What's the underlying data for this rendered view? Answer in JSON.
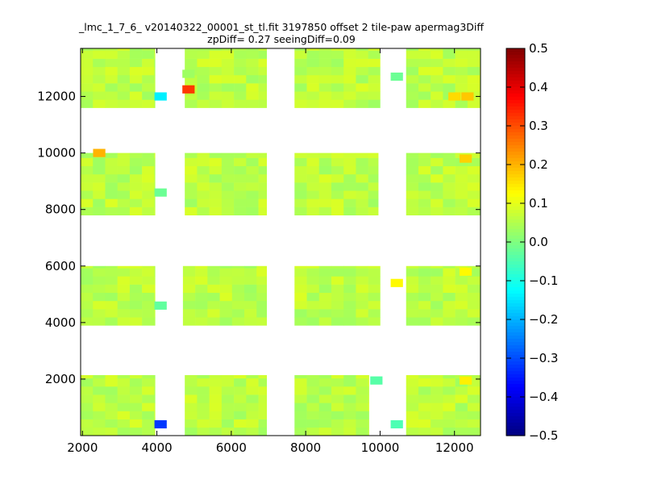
{
  "chart_data": {
    "type": "heatmap",
    "title": "_lmc_1_7_6_ v20140322_00001_st_tl.fit 3197850 offset 2 tile-paw apermag3Diff",
    "subtitle": "zpDiff= 0.27 seeingDiff=0.09",
    "xlabel": "",
    "ylabel": "",
    "xlim": [
      1950,
      12700
    ],
    "ylim": [
      0,
      13700
    ],
    "x_ticks": [
      2000,
      4000,
      6000,
      8000,
      10000,
      12000
    ],
    "y_ticks": [
      2000,
      4000,
      6000,
      8000,
      10000,
      12000
    ],
    "colorbar": {
      "range": [
        -0.5,
        0.5
      ],
      "ticks": [
        "0.5",
        "0.4",
        "0.3",
        "0.2",
        "0.1",
        "0.0",
        "−0.1",
        "−0.2",
        "−0.3",
        "−0.4",
        "−0.5"
      ],
      "colormap": "jet"
    },
    "base_value": 0.06,
    "blocks": [
      {
        "x": [
          1950,
          3950
        ],
        "y": [
          1,
          2140
        ]
      },
      {
        "x": [
          4750,
          6950
        ],
        "y": [
          1,
          2140
        ]
      },
      {
        "x": [
          7700,
          9700
        ],
        "y": [
          1,
          2140
        ]
      },
      {
        "x": [
          10700,
          12700
        ],
        "y": [
          1,
          2140
        ]
      },
      {
        "x": [
          1950,
          3950
        ],
        "y": [
          3900,
          6000
        ]
      },
      {
        "x": [
          4700,
          6950
        ],
        "y": [
          3900,
          6000
        ]
      },
      {
        "x": [
          7700,
          10000
        ],
        "y": [
          3900,
          6000
        ]
      },
      {
        "x": [
          10700,
          12700
        ],
        "y": [
          3900,
          6000
        ]
      },
      {
        "x": [
          1950,
          3950
        ],
        "y": [
          7800,
          10000
        ]
      },
      {
        "x": [
          4750,
          6950
        ],
        "y": [
          7800,
          10000
        ]
      },
      {
        "x": [
          7700,
          9950
        ],
        "y": [
          7800,
          10000
        ]
      },
      {
        "x": [
          10700,
          12700
        ],
        "y": [
          7800,
          10000
        ]
      },
      {
        "x": [
          1950,
          3950
        ],
        "y": [
          11600,
          13700
        ]
      },
      {
        "x": [
          4750,
          6950
        ],
        "y": [
          11600,
          13700
        ]
      },
      {
        "x": [
          7700,
          10000
        ],
        "y": [
          11600,
          13700
        ]
      },
      {
        "x": [
          10700,
          12700
        ],
        "y": [
          11600,
          13700
        ]
      }
    ],
    "cells": [
      {
        "x": 4100,
        "y": 400,
        "value": -0.32
      },
      {
        "x": 4100,
        "y": 4600,
        "value": -0.03
      },
      {
        "x": 4100,
        "y": 8600,
        "value": -0.02
      },
      {
        "x": 4100,
        "y": 12000,
        "value": -0.14
      },
      {
        "x": 4850,
        "y": 12250,
        "value": 0.32
      },
      {
        "x": 4850,
        "y": 12800,
        "value": 0.03
      },
      {
        "x": 2450,
        "y": 10000,
        "value": 0.2
      },
      {
        "x": 9900,
        "y": 1950,
        "value": -0.04
      },
      {
        "x": 10450,
        "y": 12700,
        "value": -0.02
      },
      {
        "x": 10450,
        "y": 400,
        "value": -0.05
      },
      {
        "x": 10450,
        "y": 5400,
        "value": 0.13
      },
      {
        "x": 12000,
        "y": 12000,
        "value": 0.16
      },
      {
        "x": 12350,
        "y": 12000,
        "value": 0.18
      },
      {
        "x": 12300,
        "y": 9800,
        "value": 0.17
      },
      {
        "x": 12300,
        "y": 1950,
        "value": 0.14
      },
      {
        "x": 12300,
        "y": 5800,
        "value": 0.13
      }
    ]
  }
}
